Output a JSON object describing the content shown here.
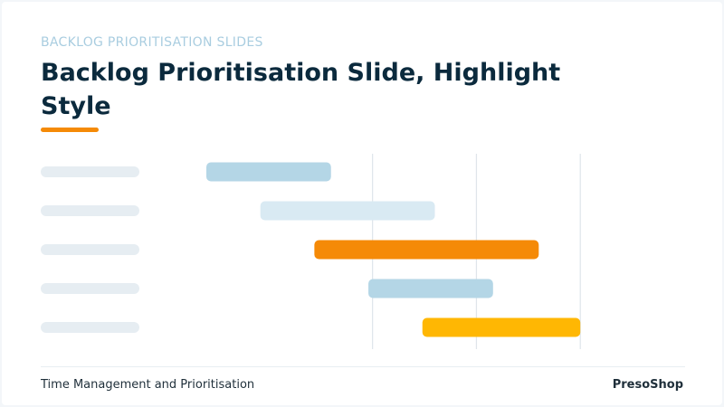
{
  "slide": {
    "eyebrow": "BACKLOG PRIORITISATION SLIDES",
    "title": "Backlog Prioritisation Slide, Highlight Style",
    "footer_left": "Time Management and Prioritisation",
    "footer_right": "PresoShop"
  },
  "colors": {
    "accent": "#f58a07",
    "title": "#0b2a3d",
    "eyebrow": "#a9cde0"
  },
  "chart_data": {
    "type": "gantt",
    "task_labels": [
      "",
      "",
      "",
      "",
      ""
    ],
    "gridlines": [
      1,
      2,
      3
    ],
    "xlim": [
      -0.6,
      4.0
    ],
    "tasks": [
      {
        "start": -0.6,
        "end": 0.6,
        "color": "#b4d6e6"
      },
      {
        "start": -0.08,
        "end": 1.6,
        "color": "#d9eaf3"
      },
      {
        "start": 0.44,
        "end": 2.6,
        "color": "#f58a07"
      },
      {
        "start": 0.96,
        "end": 2.16,
        "color": "#b4d6e6"
      },
      {
        "start": 1.48,
        "end": 3.0,
        "color": "#ffb703"
      }
    ]
  }
}
